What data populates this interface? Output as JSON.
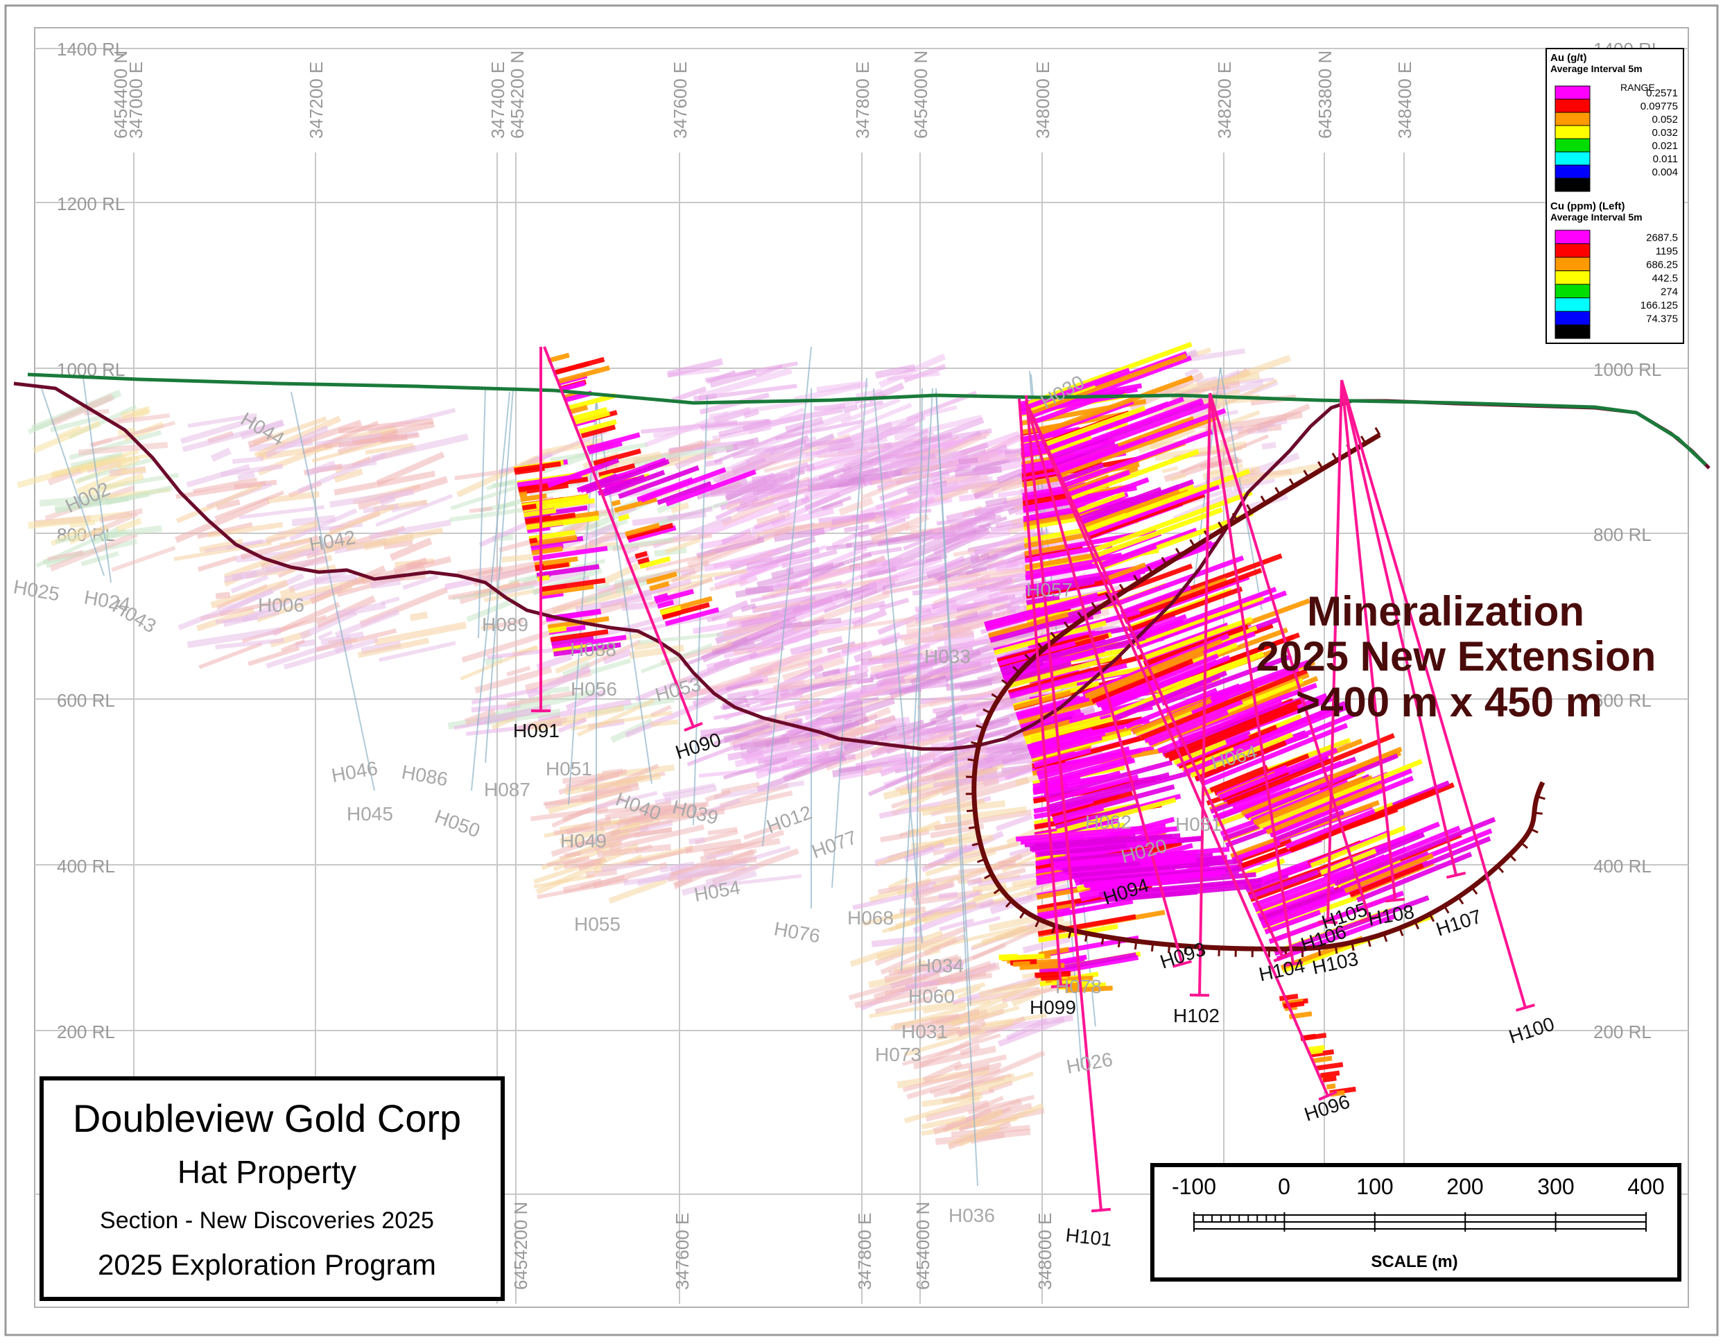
{
  "rl_labels": [
    "1400 RL",
    "1200 RL",
    "1000 RL",
    "800 RL",
    "600 RL",
    "400 RL",
    "200 RL"
  ],
  "top_axis_labels": [
    "6454400 N",
    "347000 E",
    "347200 E",
    "347400 E",
    "6454200 N",
    "347600 E",
    "347800 E",
    "6454000 N",
    "348000 E",
    "348200 E",
    "6453800 N",
    "348400 E"
  ],
  "bottom_axis_labels": [
    "6454200 N",
    "347600 E",
    "347800 E",
    "6454000 N",
    "348000 E"
  ],
  "legend": {
    "au": {
      "title": "Au (g/t)",
      "subtitle": "Average Interval 5m",
      "header": "RANGE",
      "items": [
        {
          "value": "0.2571",
          "color": "#ff00ff"
        },
        {
          "value": "0.09775",
          "color": "#ff0000"
        },
        {
          "value": "0.052",
          "color": "#ff9900"
        },
        {
          "value": "0.032",
          "color": "#ffff00"
        },
        {
          "value": "0.021",
          "color": "#00dd00"
        },
        {
          "value": "0.011",
          "color": "#00ffff"
        },
        {
          "value": "0.004",
          "color": "#0000ff"
        },
        {
          "value": "",
          "color": "#000000"
        }
      ]
    },
    "cu": {
      "title": "Cu (ppm) (Left)",
      "subtitle": "Average Interval 5m",
      "items": [
        {
          "value": "2687.5",
          "color": "#ff00ff"
        },
        {
          "value": "1195",
          "color": "#ff0000"
        },
        {
          "value": "686.25",
          "color": "#ff9900"
        },
        {
          "value": "442.5",
          "color": "#ffff00"
        },
        {
          "value": "274",
          "color": "#00dd00"
        },
        {
          "value": "166.125",
          "color": "#00ffff"
        },
        {
          "value": "74.375",
          "color": "#0000ff"
        },
        {
          "value": "",
          "color": "#000000"
        }
      ]
    }
  },
  "annotation": {
    "line1": "Mineralization",
    "line2": "2025 New Extension",
    "line3": ">400 m x  450 m"
  },
  "new_holes": [
    "H091",
    "H090",
    "H099",
    "H102",
    "H100",
    "H096",
    "H101",
    "H094",
    "H093",
    "H108",
    "H107",
    "H106",
    "H103",
    "H104",
    "H105"
  ],
  "historic_holes": [
    "H025",
    "H024",
    "H043",
    "H002",
    "H044",
    "H006",
    "H042",
    "H089",
    "H088",
    "H056",
    "H053",
    "H046",
    "H045",
    "H086",
    "H050",
    "H087",
    "H051",
    "H040",
    "H039",
    "H049",
    "H055",
    "H054",
    "H076",
    "H012",
    "H077",
    "H068",
    "H034",
    "H060",
    "H073",
    "H036",
    "H026",
    "H033",
    "H057",
    "H081",
    "H062",
    "H064",
    "H020",
    "H078",
    "H031",
    "H030"
  ],
  "title_box": {
    "company": "Doubleview Gold Corp",
    "property": "Hat Property",
    "section": "Section - New Discoveries 2025",
    "program": "2025 Exploration Program"
  },
  "scale_bar": {
    "ticks": [
      "-100",
      "0",
      "100",
      "200",
      "300",
      "400"
    ],
    "label": "SCALE (m)"
  },
  "colors": {
    "topography": "#1a7a3a",
    "base_of_cover": "#6b0a2a",
    "new_drillhole": "#ff1493",
    "mineralization_boundary": "#6b0a0a",
    "annotation_text": "#4a0b0b"
  }
}
